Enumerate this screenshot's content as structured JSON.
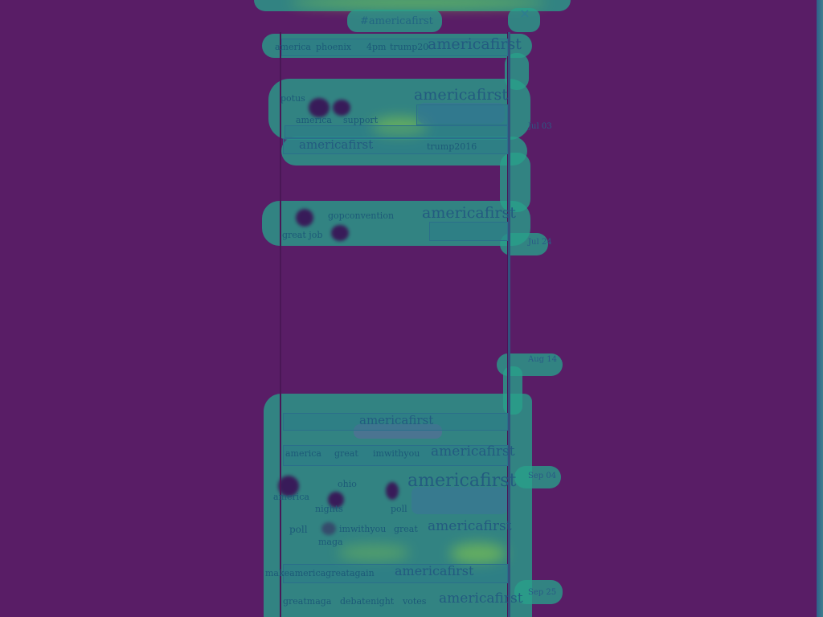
{
  "title": "#americafirst",
  "close_glyph": "×",
  "dates": [
    "Jul 03",
    "Jul 24",
    "Aug 14",
    "Sep 04",
    "Sep 25"
  ],
  "row1": {
    "words": [
      "america",
      "phoenix",
      "4pm",
      "trump20",
      "americafirst"
    ]
  },
  "row2": {
    "words": [
      "potus",
      "americafirst",
      "america",
      "support"
    ]
  },
  "row3": {
    "words": [
      "americafirst",
      "trump2016"
    ]
  },
  "row4": {
    "words": [
      "gopconvention",
      "americafirst",
      "great job"
    ]
  },
  "row5": {
    "words": [
      "americafirst"
    ]
  },
  "row6": {
    "words": [
      "america",
      "great",
      "imwithyou",
      "americafirst"
    ]
  },
  "row7": {
    "words": [
      "ohio",
      "americafirst",
      "america",
      "nights",
      "poll"
    ]
  },
  "row8": {
    "words": [
      "poll",
      "imwithyou",
      "great",
      "americafirst",
      "maga"
    ]
  },
  "row9": {
    "words": [
      "makeamericagreatagain",
      "americafirst"
    ]
  },
  "row10": {
    "words": [
      "greatmaga",
      "debatenight",
      "votes",
      "americafirst"
    ]
  },
  "colors": {
    "background": "#591d66",
    "heat_mid": "#28a08a",
    "heat_hot": "#8fd244",
    "text": "#1c5a78"
  }
}
